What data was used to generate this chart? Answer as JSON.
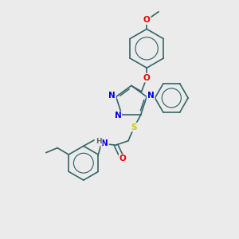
{
  "background_color": "#ebebeb",
  "atom_colors": {
    "N": "#0000ee",
    "O": "#ee0000",
    "S": "#cccc00",
    "C": "#336666",
    "H": "#666666"
  },
  "bond_color": "#336666",
  "figsize": [
    3.0,
    3.0
  ],
  "dpi": 100,
  "xlim": [
    0,
    10
  ],
  "ylim": [
    0,
    10
  ]
}
